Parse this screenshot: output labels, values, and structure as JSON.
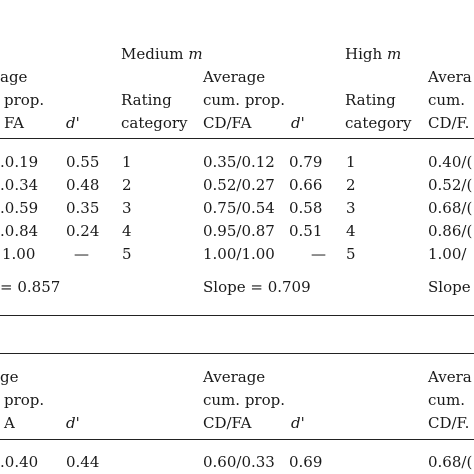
{
  "top": {
    "groups": {
      "medium_label": "Medium",
      "medium_var": "m",
      "high_label": "High",
      "high_var": "m"
    },
    "left_cols": {
      "avg_fragment": "age",
      "cum_fragment": "prop.",
      "cdfa_fragment": "FA",
      "dprime": "d'"
    },
    "medium_cols": {
      "rating_line1": "Rating",
      "rating_line2": "category",
      "avg_line1": "Average",
      "avg_line2": "cum. prop.",
      "cdfa": "CD/FA",
      "dprime": "d'"
    },
    "high_cols": {
      "rating_line1": "Rating",
      "rating_line2": "category",
      "avg_line1": "Avera",
      "avg_line2": "cum.",
      "cdfa": "CD/F."
    },
    "rows": [
      {
        "left_cdfa": "0.19",
        "left_d": "0.55",
        "med_cat": "1",
        "med_cdfa": "0.35/0.12",
        "med_d": "0.79",
        "high_cat": "1",
        "high_cdfa": "0.40/("
      },
      {
        "left_cdfa": "0.34",
        "left_d": "0.48",
        "med_cat": "2",
        "med_cdfa": "0.52/0.27",
        "med_d": "0.66",
        "high_cat": "2",
        "high_cdfa": "0.52/("
      },
      {
        "left_cdfa": "0.59",
        "left_d": "0.35",
        "med_cat": "3",
        "med_cdfa": "0.75/0.54",
        "med_d": "0.58",
        "high_cat": "3",
        "high_cdfa": "0.68/("
      },
      {
        "left_cdfa": "0.84",
        "left_d": "0.24",
        "med_cat": "4",
        "med_cdfa": "0.95/0.87",
        "med_d": "0.51",
        "high_cat": "4",
        "high_cdfa": "0.86/("
      },
      {
        "left_cdfa": "1.00",
        "left_d": "—",
        "med_cat": "5",
        "med_cdfa": "1.00/1.00",
        "med_d": "—",
        "high_cat": "5",
        "high_cdfa": "1.00/"
      }
    ],
    "slopes": {
      "left": "= 0.857",
      "medium": "Slope = 0.709",
      "high": "Slope"
    }
  },
  "bottom": {
    "left_cols": {
      "avg_fragment": "ge",
      "cum_fragment": "prop.",
      "cdfa_fragment": "A",
      "dprime": "d'"
    },
    "medium_cols": {
      "avg_line1": "Average",
      "avg_line2": "cum. prop.",
      "cdfa": "CD/FA",
      "dprime": "d'"
    },
    "high_cols": {
      "avg_line1": "Avera",
      "avg_line2": "cum.",
      "cdfa": "CD/F."
    },
    "rows": [
      {
        "left_cdfa": "0.40",
        "left_d": "0.44",
        "med_cdfa": "0.60/0.33",
        "med_d": "0.69",
        "high_cdfa": "0.68/("
      }
    ]
  }
}
